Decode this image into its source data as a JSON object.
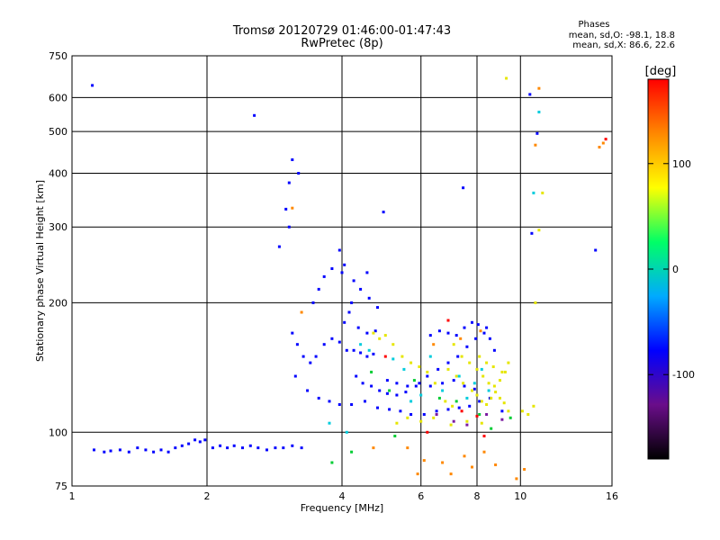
{
  "chart_data": {
    "type": "scatter",
    "title": "Tromsø 20120729 01:46:00-01:47:43",
    "subtitle": "RwPretec (8p)",
    "xlabel": "Frequency [MHz]",
    "ylabel": "Stationary phase Virtual Height [km]",
    "x_scale": "log",
    "y_scale": "log",
    "xlim": [
      1,
      16
    ],
    "ylim": [
      75,
      750
    ],
    "xticks": [
      1,
      2,
      4,
      6,
      8,
      10,
      16
    ],
    "xtick_labels": [
      "1",
      "2",
      "4",
      "6",
      "8",
      "10",
      "16"
    ],
    "yticks": [
      75,
      100,
      200,
      300,
      400,
      500,
      600,
      750
    ],
    "ytick_labels": [
      "75",
      "100",
      "200",
      "300",
      "400",
      "500",
      "600",
      "750"
    ],
    "grid": true,
    "phase_legend": {
      "heading": "Phases",
      "line_o": "mean, sd,O: -98.1, 18.8",
      "line_x": "mean, sd,X:  86.6, 22.6"
    },
    "colorbar": {
      "label": "[deg]",
      "ticks": [
        100,
        0,
        -100
      ],
      "tick_labels": [
        "100",
        "0",
        "-100"
      ],
      "range": [
        -180,
        180
      ],
      "stops": [
        "#000000",
        "#6a0d8a",
        "#0000ff",
        "#00aaff",
        "#00ff66",
        "#ffff00",
        "#ff8800",
        "#ff0000"
      ]
    },
    "series": [
      {
        "name": "",
        "color": "#0000ff",
        "points": [
          [
            1.12,
            91
          ],
          [
            1.18,
            90
          ],
          [
            1.22,
            90.5
          ],
          [
            1.28,
            91
          ],
          [
            1.34,
            90
          ],
          [
            1.4,
            92
          ],
          [
            1.46,
            91
          ],
          [
            1.52,
            90
          ],
          [
            1.58,
            91
          ],
          [
            1.64,
            90
          ],
          [
            1.7,
            92
          ],
          [
            1.76,
            93
          ],
          [
            1.82,
            94
          ],
          [
            1.88,
            96
          ],
          [
            1.93,
            95
          ],
          [
            1.98,
            96
          ],
          [
            2.06,
            92
          ],
          [
            2.14,
            93
          ],
          [
            2.22,
            92
          ],
          [
            2.3,
            93
          ],
          [
            2.4,
            92
          ],
          [
            2.5,
            93
          ],
          [
            2.6,
            92
          ],
          [
            2.72,
            91
          ],
          [
            2.84,
            92
          ],
          [
            2.96,
            92
          ],
          [
            3.1,
            93
          ],
          [
            3.25,
            92
          ],
          [
            1.11,
            640
          ],
          [
            2.55,
            545
          ],
          [
            3.1,
            430
          ],
          [
            3.05,
            380
          ],
          [
            3.2,
            400
          ],
          [
            3.0,
            330
          ],
          [
            2.9,
            270
          ],
          [
            3.05,
            300
          ],
          [
            4.95,
            325
          ],
          [
            3.1,
            170
          ],
          [
            3.18,
            160
          ],
          [
            3.28,
            150
          ],
          [
            3.4,
            145
          ],
          [
            3.5,
            150
          ],
          [
            3.65,
            160
          ],
          [
            3.8,
            165
          ],
          [
            3.95,
            162
          ],
          [
            4.1,
            155
          ],
          [
            4.25,
            155
          ],
          [
            4.4,
            153
          ],
          [
            4.55,
            150
          ],
          [
            4.7,
            152
          ],
          [
            3.15,
            135
          ],
          [
            3.35,
            125
          ],
          [
            3.55,
            120
          ],
          [
            3.75,
            118
          ],
          [
            3.95,
            116
          ],
          [
            4.2,
            116
          ],
          [
            4.5,
            118
          ],
          [
            4.8,
            114
          ],
          [
            5.1,
            113
          ],
          [
            5.4,
            112
          ],
          [
            5.7,
            110
          ],
          [
            6.1,
            110
          ],
          [
            6.5,
            112
          ],
          [
            6.9,
            113
          ],
          [
            7.3,
            114
          ],
          [
            7.7,
            115
          ],
          [
            8.1,
            118
          ],
          [
            3.45,
            200
          ],
          [
            3.55,
            215
          ],
          [
            3.65,
            230
          ],
          [
            3.8,
            240
          ],
          [
            4.0,
            235
          ],
          [
            4.25,
            225
          ],
          [
            4.4,
            215
          ],
          [
            4.6,
            205
          ],
          [
            4.8,
            195
          ],
          [
            4.05,
            180
          ],
          [
            4.15,
            190
          ],
          [
            4.2,
            200
          ],
          [
            4.35,
            175
          ],
          [
            4.55,
            170
          ],
          [
            4.75,
            172
          ],
          [
            4.3,
            135
          ],
          [
            4.45,
            130
          ],
          [
            4.65,
            128
          ],
          [
            4.85,
            125
          ],
          [
            5.05,
            123
          ],
          [
            5.3,
            122
          ],
          [
            5.55,
            124
          ],
          [
            5.85,
            128
          ],
          [
            6.2,
            135
          ],
          [
            6.55,
            140
          ],
          [
            6.9,
            145
          ],
          [
            7.25,
            150
          ],
          [
            7.6,
            158
          ],
          [
            7.95,
            165
          ],
          [
            8.3,
            170
          ],
          [
            8.55,
            165
          ],
          [
            8.75,
            155
          ],
          [
            6.3,
            168
          ],
          [
            6.6,
            172
          ],
          [
            6.9,
            170
          ],
          [
            7.2,
            168
          ],
          [
            7.5,
            175
          ],
          [
            7.8,
            180
          ],
          [
            8.05,
            178
          ],
          [
            8.4,
            175
          ],
          [
            5.05,
            132
          ],
          [
            5.3,
            130
          ],
          [
            5.6,
            128
          ],
          [
            5.95,
            130
          ],
          [
            6.3,
            128
          ],
          [
            6.7,
            130
          ],
          [
            7.1,
            132
          ],
          [
            7.5,
            128
          ],
          [
            7.9,
            126
          ],
          [
            3.95,
            265
          ],
          [
            4.05,
            245
          ],
          [
            4.55,
            235
          ],
          [
            7.45,
            370
          ],
          [
            10.5,
            610
          ],
          [
            10.9,
            495
          ],
          [
            10.6,
            290
          ],
          [
            14.7,
            265
          ],
          [
            8.55,
            120
          ],
          [
            9.1,
            112
          ]
        ]
      },
      {
        "name": "",
        "color": "#e6e600",
        "points": [
          [
            4.7,
            170
          ],
          [
            4.85,
            165
          ],
          [
            5.0,
            168
          ],
          [
            5.2,
            160
          ],
          [
            5.45,
            150
          ],
          [
            5.7,
            145
          ],
          [
            5.95,
            142
          ],
          [
            6.2,
            138
          ],
          [
            6.45,
            130
          ],
          [
            7.1,
            160
          ],
          [
            7.4,
            150
          ],
          [
            7.7,
            145
          ],
          [
            8.0,
            140
          ],
          [
            8.25,
            135
          ],
          [
            8.5,
            130
          ],
          [
            8.75,
            128
          ],
          [
            9.0,
            132
          ],
          [
            9.25,
            138
          ],
          [
            9.4,
            145
          ],
          [
            7.8,
            125
          ],
          [
            8.0,
            122
          ],
          [
            8.2,
            118
          ],
          [
            8.4,
            116
          ],
          [
            8.6,
            120
          ],
          [
            8.8,
            124
          ],
          [
            9.0,
            120
          ],
          [
            9.2,
            117
          ],
          [
            9.4,
            112
          ],
          [
            10.1,
            112
          ],
          [
            10.4,
            110
          ],
          [
            10.7,
            115
          ],
          [
            5.3,
            105
          ],
          [
            5.6,
            108
          ],
          [
            6.0,
            106
          ],
          [
            6.4,
            108
          ],
          [
            7.0,
            104
          ],
          [
            7.6,
            106
          ],
          [
            8.2,
            105
          ],
          [
            9.3,
            665
          ],
          [
            11.2,
            360
          ],
          [
            11.0,
            295
          ],
          [
            10.8,
            200
          ],
          [
            6.9,
            140
          ],
          [
            7.2,
            135
          ],
          [
            7.45,
            130
          ],
          [
            8.1,
            150
          ],
          [
            8.4,
            145
          ],
          [
            8.7,
            142
          ],
          [
            9.1,
            138
          ],
          [
            6.8,
            118
          ],
          [
            7.05,
            115
          ]
        ]
      },
      {
        "name": "",
        "color": "#00ccdd",
        "points": [
          [
            4.4,
            160
          ],
          [
            4.6,
            155
          ],
          [
            5.2,
            148
          ],
          [
            5.5,
            140
          ],
          [
            6.3,
            150
          ],
          [
            7.3,
            135
          ],
          [
            7.9,
            130
          ],
          [
            8.2,
            140
          ],
          [
            8.5,
            125
          ],
          [
            3.75,
            105
          ],
          [
            4.1,
            100
          ],
          [
            11.0,
            555
          ],
          [
            10.7,
            360
          ],
          [
            5.7,
            118
          ],
          [
            6.0,
            122
          ],
          [
            6.7,
            125
          ],
          [
            7.6,
            120
          ]
        ]
      },
      {
        "name": "",
        "color": "#00cc33",
        "points": [
          [
            4.65,
            138
          ],
          [
            5.1,
            125
          ],
          [
            5.8,
            132
          ],
          [
            6.6,
            120
          ],
          [
            7.2,
            118
          ],
          [
            8.1,
            110
          ],
          [
            8.6,
            102
          ],
          [
            9.5,
            108
          ],
          [
            5.25,
            98
          ],
          [
            4.2,
            90
          ],
          [
            3.8,
            85
          ]
        ]
      },
      {
        "name": "",
        "color": "#ff8800",
        "points": [
          [
            3.1,
            332
          ],
          [
            3.25,
            190
          ],
          [
            4.7,
            92
          ],
          [
            5.6,
            92
          ],
          [
            6.1,
            86
          ],
          [
            6.7,
            85
          ],
          [
            7.5,
            88
          ],
          [
            8.3,
            90
          ],
          [
            10.8,
            465
          ],
          [
            11.0,
            630
          ],
          [
            15.0,
            460
          ],
          [
            15.3,
            470
          ],
          [
            5.9,
            80
          ],
          [
            7.0,
            80
          ],
          [
            7.8,
            83
          ],
          [
            8.8,
            84
          ],
          [
            9.8,
            78
          ],
          [
            10.2,
            82
          ],
          [
            6.4,
            160
          ],
          [
            7.35,
            165
          ],
          [
            8.15,
            172
          ]
        ]
      },
      {
        "name": "",
        "color": "#ff0000",
        "points": [
          [
            5.0,
            150
          ],
          [
            6.2,
            100
          ],
          [
            6.9,
            182
          ],
          [
            7.4,
            112
          ],
          [
            8.0,
            109
          ],
          [
            8.3,
            98
          ],
          [
            15.5,
            480
          ]
        ]
      },
      {
        "name": "",
        "color": "#7a1aa0",
        "points": [
          [
            6.5,
            110
          ],
          [
            7.1,
            106
          ],
          [
            7.6,
            104
          ],
          [
            8.4,
            110
          ],
          [
            9.1,
            107
          ]
        ]
      }
    ]
  }
}
